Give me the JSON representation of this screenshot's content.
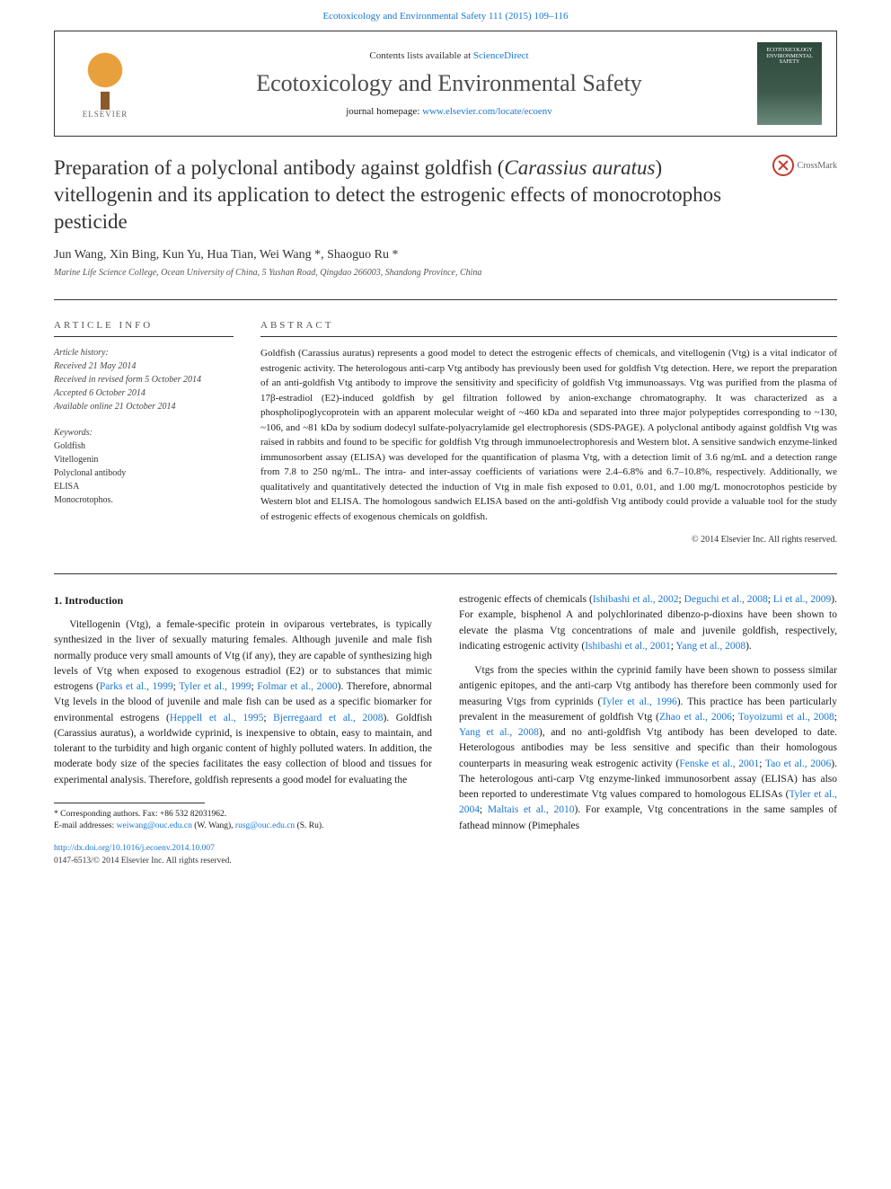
{
  "header": {
    "citation": "Ecotoxicology and Environmental Safety 111 (2015) 109–116",
    "contents_prefix": "Contents lists available at ",
    "contents_link": "ScienceDirect",
    "journal_title": "Ecotoxicology and Environmental Safety",
    "homepage_prefix": "journal homepage: ",
    "homepage_link": "www.elsevier.com/locate/ecoenv",
    "elsevier_label": "ELSEVIER",
    "cover_line1": "ECOTOXICOLOGY",
    "cover_line2": "ENVIRONMENTAL",
    "cover_line3": "SAFETY"
  },
  "crossmark_label": "CrossMark",
  "title": {
    "pre": "Preparation of a polyclonal antibody against goldfish (",
    "italic": "Carassius auratus",
    "post": ") vitellogenin and its application to detect the estrogenic effects of monocrotophos pesticide"
  },
  "authors_line": "Jun Wang, Xin Bing, Kun Yu, Hua Tian, Wei Wang *, Shaoguo Ru *",
  "affiliation": "Marine Life Science College, Ocean University of China, 5 Yushan Road, Qingdao 266003, Shandong Province, China",
  "info": {
    "heading": "ARTICLE INFO",
    "history_label": "Article history:",
    "received": "Received 21 May 2014",
    "revised": "Received in revised form 5 October 2014",
    "accepted": "Accepted 6 October 2014",
    "online": "Available online 21 October 2014",
    "keywords_label": "Keywords:",
    "keywords": [
      "Goldfish",
      "Vitellogenin",
      "Polyclonal antibody",
      "ELISA",
      "Monocrotophos."
    ]
  },
  "abstract": {
    "heading": "ABSTRACT",
    "text": "Goldfish (Carassius auratus) represents a good model to detect the estrogenic effects of chemicals, and vitellogenin (Vtg) is a vital indicator of estrogenic activity. The heterologous anti-carp Vtg antibody has previously been used for goldfish Vtg detection. Here, we report the preparation of an anti-goldfish Vtg antibody to improve the sensitivity and specificity of goldfish Vtg immunoassays. Vtg was purified from the plasma of 17β-estradiol (E2)-induced goldfish by gel filtration followed by anion-exchange chromatography. It was characterized as a phospholipoglycoprotein with an apparent molecular weight of ~460 kDa and separated into three major polypeptides corresponding to ~130, ~106, and ~81 kDa by sodium dodecyl sulfate-polyacrylamide gel electrophoresis (SDS-PAGE). A polyclonal antibody against goldfish Vtg was raised in rabbits and found to be specific for goldfish Vtg through immunoelectrophoresis and Western blot. A sensitive sandwich enzyme-linked immunosorbent assay (ELISA) was developed for the quantification of plasma Vtg, with a detection limit of 3.6 ng/mL and a detection range from 7.8 to 250 ng/mL. The intra- and inter-assay coefficients of variations were 2.4–6.8% and 6.7–10.8%, respectively. Additionally, we qualitatively and quantitatively detected the induction of Vtg in male fish exposed to 0.01, 0.01, and 1.00 mg/L monocrotophos pesticide by Western blot and ELISA. The homologous sandwich ELISA based on the anti-goldfish Vtg antibody could provide a valuable tool for the study of estrogenic effects of exogenous chemicals on goldfish.",
    "copyright": "© 2014 Elsevier Inc. All rights reserved."
  },
  "body": {
    "section_heading": "1. Introduction",
    "left_p1_a": "Vitellogenin (Vtg), a female-specific protein in oviparous vertebrates, is typically synthesized in the liver of sexually maturing females. Although juvenile and male fish normally produce very small amounts of Vtg (if any), they are capable of synthesizing high levels of Vtg when exposed to exogenous estradiol (E2) or to substances that mimic estrogens (",
    "left_p1_ref1": "Parks et al., 1999",
    "left_p1_b": "; ",
    "left_p1_ref2": "Tyler et al., 1999",
    "left_p1_c": "; ",
    "left_p1_ref3": "Folmar et al., 2000",
    "left_p1_d": "). Therefore, abnormal Vtg levels in the blood of juvenile and male fish can be used as a specific biomarker for environmental estrogens (",
    "left_p1_ref4": "Heppell et al., 1995",
    "left_p1_e": "; ",
    "left_p1_ref5": "Bjerregaard et al., 2008",
    "left_p1_f": "). Goldfish (Carassius auratus), a worldwide cyprinid, is inexpensive to obtain, easy to maintain, and tolerant to the turbidity and high organic content of highly polluted waters. In addition, the moderate body size of the species facilitates the easy collection of blood and tissues for experimental analysis. Therefore, goldfish represents a good model for evaluating the",
    "right_p1_a": "estrogenic effects of chemicals (",
    "right_p1_ref1": "Ishibashi et al., 2002",
    "right_p1_b": "; ",
    "right_p1_ref2": "Deguchi et al., 2008",
    "right_p1_c": "; ",
    "right_p1_ref3": "Li et al., 2009",
    "right_p1_d": "). For example, bisphenol A and polychlorinated dibenzo-p-dioxins have been shown to elevate the plasma Vtg concentrations of male and juvenile goldfish, respectively, indicating estrogenic activity (",
    "right_p1_ref4": "Ishibashi et al., 2001",
    "right_p1_e": "; ",
    "right_p1_ref5": "Yang et al., 2008",
    "right_p1_f": ").",
    "right_p2_a": "Vtgs from the species within the cyprinid family have been shown to possess similar antigenic epitopes, and the anti-carp Vtg antibody has therefore been commonly used for measuring Vtgs from cyprinids (",
    "right_p2_ref1": "Tyler et al., 1996",
    "right_p2_b": "). This practice has been particularly prevalent in the measurement of goldfish Vtg (",
    "right_p2_ref2": "Zhao et al., 2006",
    "right_p2_c": "; ",
    "right_p2_ref3": "Toyoizumi et al., 2008",
    "right_p2_d": "; ",
    "right_p2_ref4": "Yang et al., 2008",
    "right_p2_e": "), and no anti-goldfish Vtg antibody has been developed to date. Heterologous antibodies may be less sensitive and specific than their homologous counterparts in measuring weak estrogenic activity (",
    "right_p2_ref5": "Fenske et al., 2001",
    "right_p2_f": "; ",
    "right_p2_ref6": "Tao et al., 2006",
    "right_p2_g": "). The heterologous anti-carp Vtg enzyme-linked immunosorbent assay (ELISA) has also been reported to underestimate Vtg values compared to homologous ELISAs (",
    "right_p2_ref7": "Tyler et al., 2004",
    "right_p2_h": "; ",
    "right_p2_ref8": "Maltais et al., 2010",
    "right_p2_i": "). For example, Vtg concentrations in the same samples of fathead minnow (Pimephales"
  },
  "footnotes": {
    "corr": "* Corresponding authors. Fax: +86 532 82031962.",
    "emails_label": "E-mail addresses: ",
    "email1": "weiwang@ouc.edu.cn",
    "email1_name": " (W. Wang), ",
    "email2": "rusg@ouc.edu.cn",
    "email2_name": " (S. Ru).",
    "doi": "http://dx.doi.org/10.1016/j.ecoenv.2014.10.007",
    "issn": "0147-6513/© 2014 Elsevier Inc. All rights reserved."
  },
  "colors": {
    "link": "#1976d2",
    "text": "#1a1a1a",
    "border": "#333333"
  }
}
